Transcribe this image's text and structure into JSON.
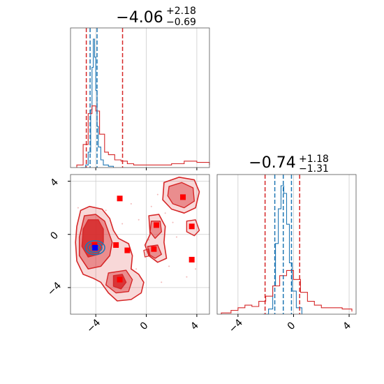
{
  "chart_data": [
    {
      "type": "line",
      "panel": "marginal-top-left",
      "title_main": "−4.06",
      "title_sup": "+2.18",
      "title_sub": "−0.69",
      "xlim": [
        -6,
        5
      ],
      "xticks": [
        -4,
        0,
        4
      ],
      "grid": true,
      "series": [
        {
          "color": "#1f77b4",
          "shape": "narrow histogram",
          "x": [
            -5.2,
            -4.8,
            -4.6,
            -4.4,
            -4.3,
            -4.2,
            -4.1,
            -4.0,
            -3.9,
            -3.8,
            -3.6,
            -3.4,
            -3.0,
            -2.6
          ],
          "values": [
            0,
            0.02,
            0.12,
            0.45,
            0.78,
            1.0,
            0.86,
            0.6,
            0.32,
            0.16,
            0.06,
            0.02,
            0.01,
            0
          ]
        },
        {
          "color": "#d62728",
          "shape": "broad histogram",
          "x": [
            -5.5,
            -5.0,
            -4.6,
            -4.3,
            -4.0,
            -3.7,
            -3.3,
            -3.0,
            -2.5,
            -2.0,
            -1.5,
            -1.0,
            0,
            1.0,
            2.0,
            3.0,
            4.0,
            5.0
          ],
          "values": [
            0.02,
            0.18,
            0.42,
            0.48,
            0.44,
            0.26,
            0.12,
            0.1,
            0.06,
            0.05,
            0.03,
            0.02,
            0.02,
            0.02,
            0.03,
            0.05,
            0.04,
            0.02
          ]
        }
      ],
      "quantile_lines": [
        {
          "color": "#d62728",
          "x": [
            -4.75,
            -1.88
          ]
        },
        {
          "color": "#1f77b4",
          "x": [
            -4.45,
            -3.9
          ]
        }
      ]
    },
    {
      "type": "contour",
      "panel": "joint-bottom-left",
      "xlim": [
        -6,
        5
      ],
      "ylim": [
        -6,
        4.5
      ],
      "xticks": [
        -4,
        0,
        4
      ],
      "yticks": [
        -4,
        0,
        4
      ],
      "grid": true,
      "red_markers": [
        {
          "x": -2.1,
          "y": 2.7
        },
        {
          "x": 2.9,
          "y": 2.8
        },
        {
          "x": 0.8,
          "y": 0.7
        },
        {
          "x": 3.6,
          "y": 0.6
        },
        {
          "x": -4.1,
          "y": -0.8
        },
        {
          "x": -2.4,
          "y": -0.8
        },
        {
          "x": -1.5,
          "y": -1.2
        },
        {
          "x": 0.6,
          "y": -1.1
        },
        {
          "x": 3.6,
          "y": -1.9
        },
        {
          "x": -2.1,
          "y": -3.4
        }
      ],
      "blue_marker": {
        "x": -4.06,
        "y": -1.0
      }
    },
    {
      "type": "line",
      "panel": "marginal-bottom-right",
      "title_main": "−0.74",
      "title_sup": "+1.18",
      "title_sub": "−1.31",
      "xlim": [
        -5.5,
        4.5
      ],
      "xticks": [
        -4,
        0,
        4
      ],
      "grid": true,
      "series": [
        {
          "color": "#1f77b4",
          "shape": "narrow histogram",
          "x": [
            -2.2,
            -1.8,
            -1.5,
            -1.3,
            -1.1,
            -0.9,
            -0.7,
            -0.5,
            -0.3,
            -0.1,
            0.2,
            0.6
          ],
          "values": [
            0,
            0.04,
            0.22,
            0.55,
            0.82,
            1.0,
            0.94,
            0.7,
            0.4,
            0.18,
            0.05,
            0
          ]
        },
        {
          "color": "#d62728",
          "shape": "broad histogram",
          "x": [
            -5.2,
            -4.5,
            -4.0,
            -3.5,
            -3.0,
            -2.5,
            -2.0,
            -1.5,
            -1.0,
            -0.5,
            0,
            0.5,
            1.0,
            1.5,
            2.0,
            2.5,
            3.0,
            3.5,
            4.2
          ],
          "values": [
            0.01,
            0.03,
            0.05,
            0.07,
            0.06,
            0.1,
            0.14,
            0.22,
            0.3,
            0.34,
            0.27,
            0.17,
            0.1,
            0.07,
            0.05,
            0.05,
            0.05,
            0.04,
            0.02
          ]
        }
      ],
      "quantile_lines": [
        {
          "color": "#d62728",
          "x": [
            -2.05,
            0.44
          ]
        },
        {
          "color": "#1f77b4",
          "x": [
            -1.35,
            -0.74,
            -0.15
          ]
        }
      ]
    }
  ]
}
